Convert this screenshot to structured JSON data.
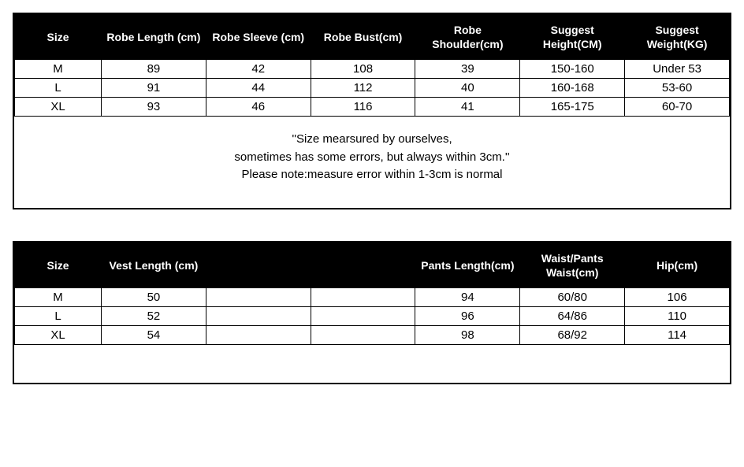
{
  "table1": {
    "columns": [
      "Size",
      "Robe Length (cm)",
      "Robe Sleeve (cm)",
      "Robe Bust(cm)",
      "Robe Shoulder(cm)",
      "Suggest Height(CM)",
      "Suggest Weight(KG)"
    ],
    "rows": [
      [
        "M",
        "89",
        "42",
        "108",
        "39",
        "150-160",
        "Under 53"
      ],
      [
        "L",
        "91",
        "44",
        "112",
        "40",
        "160-168",
        "53-60"
      ],
      [
        "XL",
        "93",
        "46",
        "116",
        "41",
        "165-175",
        "60-70"
      ]
    ],
    "note_line1": "''Size mearsured by ourselves,",
    "note_line2": "sometimes has some errors, but always within 3cm.''",
    "note_line3": "Please note:measure error within 1-3cm is normal"
  },
  "table2": {
    "columns": [
      "Size",
      "Vest Length (cm)",
      "",
      "",
      "Pants Length(cm)",
      "Waist/Pants Waist(cm)",
      "Hip(cm)"
    ],
    "rows": [
      [
        "M",
        "50",
        "",
        "",
        "94",
        "60/80",
        "106"
      ],
      [
        "L",
        "52",
        "",
        "",
        "96",
        "64/86",
        "110"
      ],
      [
        "XL",
        "54",
        "",
        "",
        "98",
        "68/92",
        "114"
      ]
    ]
  },
  "style": {
    "header_bg": "#000000",
    "header_color": "#ffffff",
    "cell_bg": "#ffffff",
    "border_color": "#000000",
    "font_family": "Comic Sans MS",
    "header_fontsize": 14,
    "cell_fontsize": 15
  }
}
